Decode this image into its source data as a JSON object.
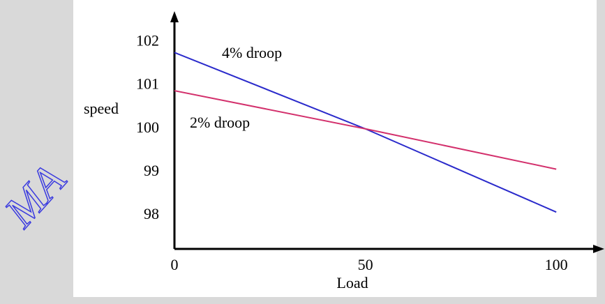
{
  "chart_data": {
    "type": "line",
    "x_label": "Load",
    "y_label": "speed",
    "x": [
      0,
      50,
      100
    ],
    "series": [
      {
        "name": "4% droop",
        "color": "#2a2acb",
        "values": [
          101.76,
          100,
          98.08
        ]
      },
      {
        "name": "2% droop",
        "color": "#d3306c",
        "values": [
          100.88,
          100,
          99.07
        ]
      }
    ],
    "xlim": [
      0,
      112.4
    ],
    "xticks": [
      0,
      50,
      100
    ],
    "ylim": [
      97.23,
      102.65
    ],
    "yticks": [
      98,
      99,
      100,
      101,
      102
    ],
    "watermark": "MA"
  }
}
